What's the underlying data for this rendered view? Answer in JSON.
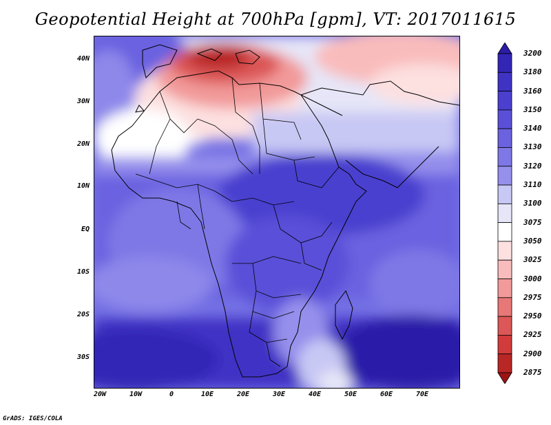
{
  "title": "Geopotential Height at 700hPa [gpm], VT: 2017011615",
  "credit": "GrADS: IGES/COLA",
  "lat_labels": [
    "40N",
    "30N",
    "20N",
    "10N",
    "EQ",
    "10S",
    "20S",
    "30S"
  ],
  "lon_labels": [
    "20W",
    "10W",
    "0",
    "10E",
    "20E",
    "30E",
    "40E",
    "50E",
    "60E",
    "70E"
  ],
  "colorbar": {
    "levels": [
      "3200",
      "3180",
      "3160",
      "3150",
      "3140",
      "3130",
      "3120",
      "3110",
      "3100",
      "3075",
      "3050",
      "3025",
      "3000",
      "2975",
      "2950",
      "2925",
      "2900",
      "2875"
    ],
    "colors": [
      "#2b1ca8",
      "#3326b6",
      "#3f33c4",
      "#4a3fcf",
      "#5a50d8",
      "#6b62e0",
      "#7e78e6",
      "#9690ec",
      "#c8c8f4",
      "#e6e6f8",
      "#ffffff",
      "#fde0e0",
      "#f9bcbc",
      "#f29a9a",
      "#e87777",
      "#dc5757",
      "#d13b3b",
      "#b92626",
      "#9c1414"
    ]
  },
  "map": {
    "lon_range": [
      -22,
      80
    ],
    "lat_range": [
      -37,
      45
    ],
    "variable": "geopotential height 700hPa",
    "units": "gpm"
  }
}
